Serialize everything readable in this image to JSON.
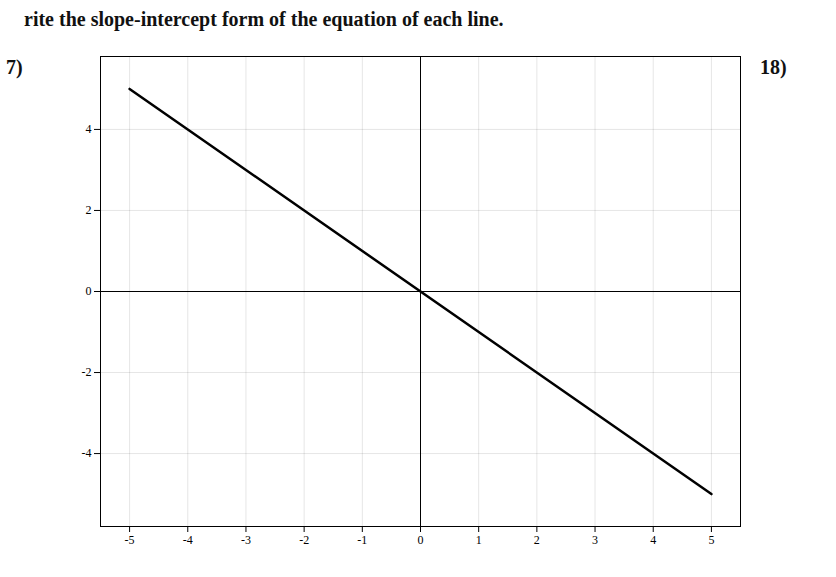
{
  "chart_data": {
    "type": "line",
    "title": "rite the slope-intercept form of the equation of each line.",
    "annotations": [
      "7)",
      "18)"
    ],
    "x": [
      -5,
      5
    ],
    "values": [
      5,
      -5
    ],
    "color": "#000000",
    "xlim": [
      -5.5,
      5.5
    ],
    "ylim": [
      -5.8,
      5.8
    ],
    "xticks": [
      -5,
      -4,
      -3,
      -2,
      -1,
      0,
      1,
      2,
      3,
      4,
      5
    ],
    "yticks": [
      -4,
      -2,
      0,
      2,
      4
    ],
    "grid": true
  }
}
